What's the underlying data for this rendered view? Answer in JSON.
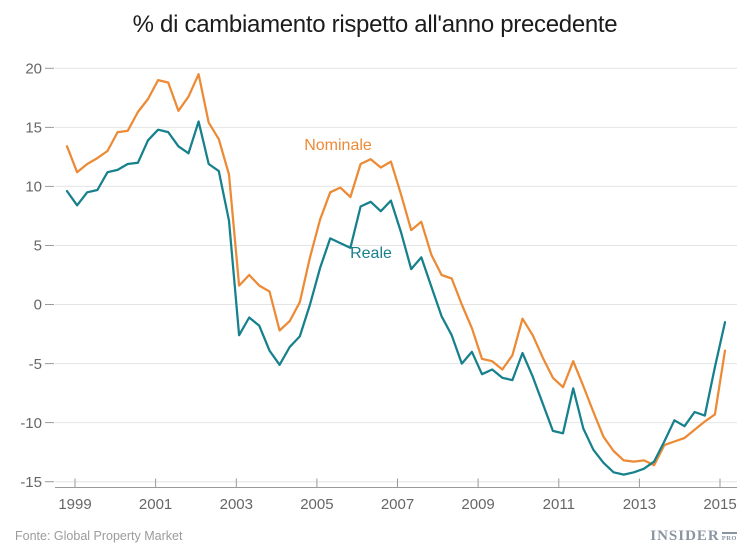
{
  "title": "% di cambiamento rispetto all'anno precedente",
  "footer": {
    "source": "Fonte: Global Property Market",
    "logo_main": "INSIDER",
    "logo_sub": "PRO"
  },
  "colors": {
    "nominale": "#EC8A35",
    "reale": "#16808C",
    "grid": "#E4E4E4",
    "axis": "#9A9A9A",
    "tick_label": "#666666",
    "title_text": "#1c1c1c"
  },
  "chart_data": {
    "type": "line",
    "title": "% di cambiamento rispetto all'anno precedente",
    "xlabel": "",
    "ylabel": "",
    "ylim": [
      -15,
      20
    ],
    "grid": true,
    "legend_position": "inline-annotations",
    "y_ticks": [
      20,
      15,
      10,
      5,
      0,
      -5,
      -10,
      -15
    ],
    "x_tick_labels": [
      "1999",
      "2001",
      "2003",
      "2005",
      "2007",
      "2009",
      "2011",
      "2013",
      "2015"
    ],
    "x_labels": [
      "1998 Q4",
      "1999 Q1",
      "1999 Q2",
      "1999 Q3",
      "1999 Q4",
      "2000 Q1",
      "2000 Q2",
      "2000 Q3",
      "2000 Q4",
      "2001 Q1",
      "2001 Q2",
      "2001 Q3",
      "2001 Q4",
      "2002 Q1",
      "2002 Q2",
      "2002 Q3",
      "2002 Q4",
      "2003 Q1",
      "2003 Q2",
      "2003 Q3",
      "2003 Q4",
      "2004 Q1",
      "2004 Q2",
      "2004 Q3",
      "2004 Q4",
      "2005 Q1",
      "2005 Q2",
      "2005 Q3",
      "2005 Q4",
      "2006 Q1",
      "2006 Q2",
      "2006 Q3",
      "2006 Q4",
      "2007 Q1",
      "2007 Q2",
      "2007 Q3",
      "2007 Q4",
      "2008 Q1",
      "2008 Q2",
      "2008 Q3",
      "2008 Q4",
      "2009 Q1",
      "2009 Q2",
      "2009 Q3",
      "2009 Q4",
      "2010 Q1",
      "2010 Q2",
      "2010 Q3",
      "2010 Q4",
      "2011 Q1",
      "2011 Q2",
      "2011 Q3",
      "2011 Q4",
      "2012 Q1",
      "2012 Q2",
      "2012 Q3",
      "2012 Q4",
      "2013 Q1",
      "2013 Q2",
      "2013 Q3",
      "2013 Q4",
      "2014 Q1",
      "2014 Q2",
      "2014 Q3",
      "2014 Q4",
      "2015 Q1"
    ],
    "series": [
      {
        "name": "Nominale",
        "color": "#EC8A35",
        "values": [
          13.4,
          11.2,
          11.9,
          12.4,
          13.0,
          14.6,
          14.7,
          16.3,
          17.4,
          19.0,
          18.8,
          16.4,
          17.6,
          19.5,
          15.4,
          14.0,
          11.0,
          1.6,
          2.5,
          1.6,
          1.1,
          -2.2,
          -1.4,
          0.2,
          4.0,
          7.2,
          9.5,
          9.9,
          9.1,
          11.9,
          12.3,
          11.6,
          12.1,
          9.3,
          6.3,
          7.0,
          4.2,
          2.5,
          2.2,
          0.0,
          -2.0,
          -4.6,
          -4.8,
          -5.5,
          -4.3,
          -1.2,
          -2.6,
          -4.5,
          -6.2,
          -7.0,
          -4.8,
          -6.9,
          -9.1,
          -11.2,
          -12.4,
          -13.2,
          -13.3,
          -13.2,
          -13.6,
          -11.9,
          -11.6,
          -11.3,
          -10.6,
          -9.9,
          -9.3,
          -3.9
        ]
      },
      {
        "name": "Reale",
        "color": "#16808C",
        "values": [
          9.6,
          8.4,
          9.5,
          9.7,
          11.2,
          11.4,
          11.9,
          12.0,
          13.9,
          14.8,
          14.6,
          13.4,
          12.8,
          15.5,
          11.9,
          11.3,
          7.1,
          -2.6,
          -1.1,
          -1.8,
          -3.9,
          -5.1,
          -3.6,
          -2.7,
          0.0,
          3.1,
          5.6,
          5.2,
          4.8,
          8.3,
          8.7,
          7.9,
          8.8,
          6.1,
          3.0,
          4.0,
          1.5,
          -1.0,
          -2.6,
          -5.0,
          -4.0,
          -5.9,
          -5.5,
          -6.2,
          -6.4,
          -4.1,
          -6.1,
          -8.4,
          -10.7,
          -10.9,
          -7.1,
          -10.5,
          -12.3,
          -13.4,
          -14.2,
          -14.4,
          -14.2,
          -13.9,
          -13.3,
          -11.6,
          -9.8,
          -10.3,
          -9.1,
          -9.4,
          -5.3,
          -1.5
        ]
      }
    ]
  }
}
